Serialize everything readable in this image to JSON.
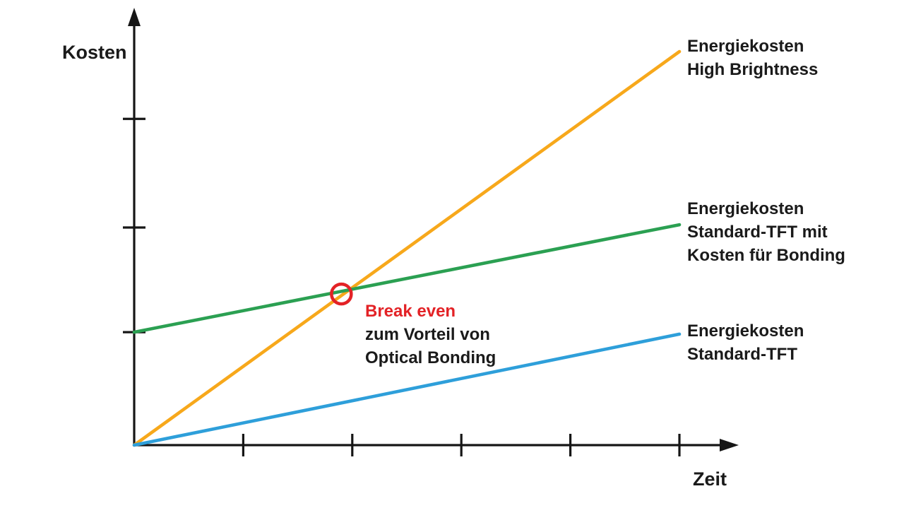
{
  "chart_data": {
    "type": "line",
    "title": "",
    "xlabel": "Zeit",
    "ylabel": "Kosten",
    "x_range": [
      0,
      1
    ],
    "y_range": [
      0,
      100
    ],
    "x_ticks": [
      0.2,
      0.4,
      0.6,
      0.8,
      1.0
    ],
    "y_ticks": [
      28.7,
      55.3,
      82.9
    ],
    "tick_labels_shown": false,
    "grid": false,
    "axis_color": "#161616",
    "text_color": "#1a1a1a",
    "series": [
      {
        "id": "high-brightness",
        "name": "Energiekosten High Brightness",
        "color": "#F7A81B",
        "points": [
          [
            0,
            0
          ],
          [
            1,
            100
          ]
        ]
      },
      {
        "id": "standard-tft-mit-bonding",
        "name": "Energiekosten Standard-TFT mit Kosten für Bonding",
        "color": "#2BA052",
        "points": [
          [
            0,
            28.7
          ],
          [
            1,
            56.0
          ]
        ]
      },
      {
        "id": "standard-tft",
        "name": "Energiekosten Standard-TFT",
        "color": "#2E9FDA",
        "points": [
          [
            0,
            0
          ],
          [
            1,
            28.2
          ]
        ]
      }
    ],
    "legend": {
      "position": "right-of-line-ends",
      "entries": [
        {
          "text": "Energiekosten\nHigh Brightness",
          "color": "#F7A81B"
        },
        {
          "text": "Energiekosten\nStandard-TFT mit\nKosten für Bonding",
          "color": "#2BA052"
        },
        {
          "text": "Energiekosten\nStandard-TFT",
          "color": "#2E9FDA"
        }
      ]
    },
    "annotation": {
      "marker": "red-circle-outline",
      "marker_color": "#E32226",
      "break_even_point": {
        "x": 0.38,
        "y": 38.4
      },
      "label_line1": "Break even",
      "label_rest": "zum Vorteil von\nOptical Bonding"
    }
  }
}
